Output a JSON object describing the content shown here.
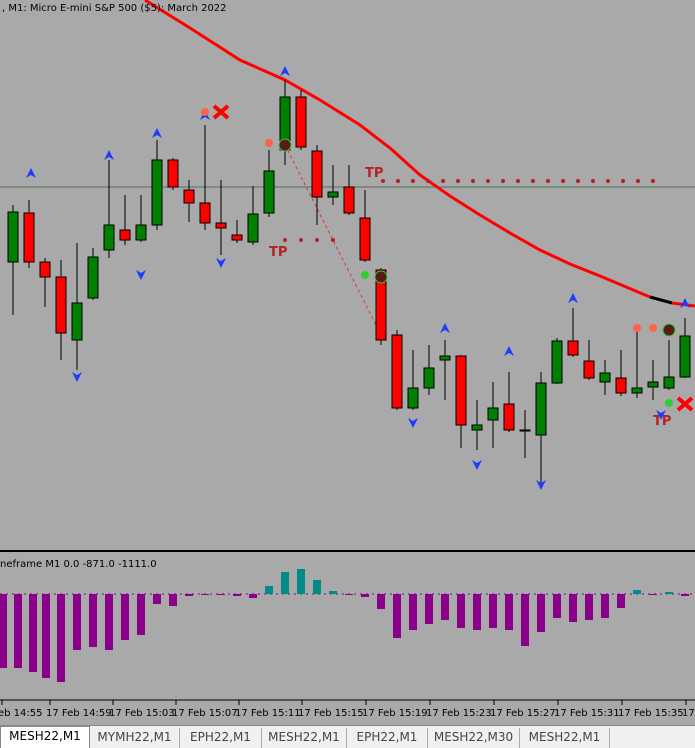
{
  "header": {
    "title": ", M1:  Micro E-mini S&P 500 ($5): March 2022"
  },
  "indicator": {
    "label": "neframe M1 0.0 -871.0 -1111.0"
  },
  "annotations": {
    "tp_labels": [
      "TP",
      "TP",
      "TP"
    ]
  },
  "time_axis": {
    "labels": [
      "eb 14:55",
      "17 Feb 14:59",
      "17 Feb 15:03",
      "17 Feb 15:07",
      "17 Feb 15:11",
      "17 Feb 15:15",
      "17 Feb 15:19",
      "17 Feb 15:23",
      "17 Feb 15:27",
      "17 Feb 15:31",
      "17 Feb 15:35",
      "17"
    ]
  },
  "tabs": [
    "MESH22,M1",
    "MYMH22,M1",
    "EPH22,M1",
    "MESH22,M1",
    "EPH22,M1",
    "MESH22,M30",
    "MESH22,M1"
  ]
}
